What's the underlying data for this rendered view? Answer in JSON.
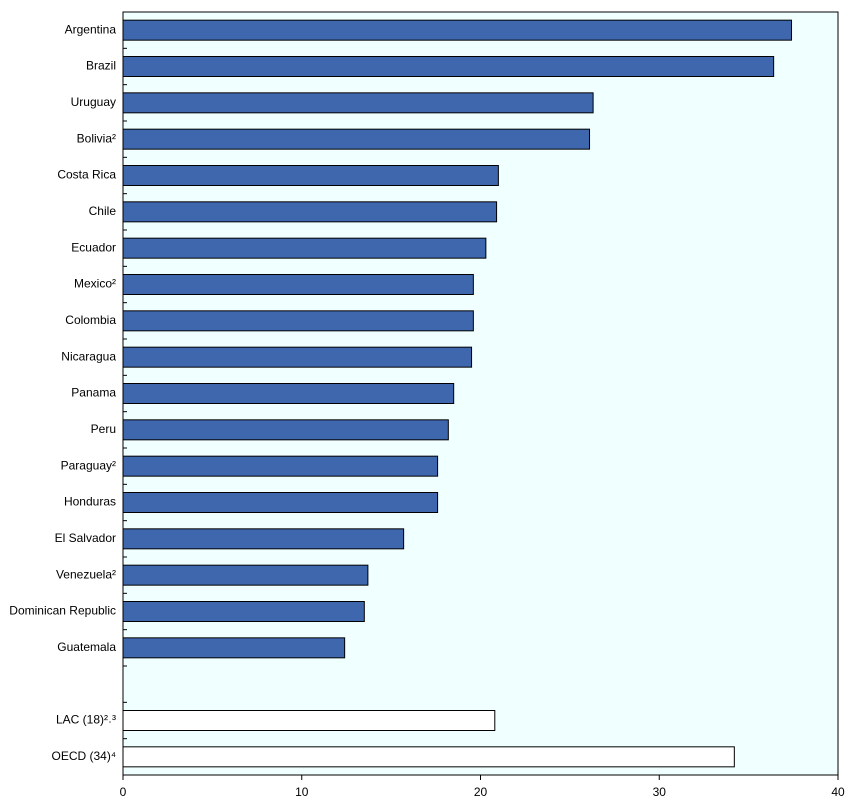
{
  "chart_data": {
    "type": "hbar",
    "categories": [
      "Argentina",
      "Brazil",
      "Uruguay",
      "Bolivia²",
      "Costa Rica",
      "Chile",
      "Ecuador",
      "Mexico²",
      "Colombia",
      "Nicaragua",
      "Panama",
      "Peru",
      "Paraguay²",
      "Honduras",
      "El Salvador",
      "Venezuela²",
      "Dominican Republic",
      "Guatemala",
      null,
      "LAC (18)²˒³",
      "OECD (34)⁴"
    ],
    "values": [
      37.4,
      36.4,
      26.3,
      26.1,
      21.0,
      20.9,
      20.3,
      19.6,
      19.6,
      19.5,
      18.5,
      18.2,
      17.6,
      17.6,
      15.7,
      13.7,
      13.5,
      12.4,
      null,
      20.8,
      34.2
    ],
    "colors": [
      "#3e67ad",
      "#3e67ad",
      "#3e67ad",
      "#3e67ad",
      "#3e67ad",
      "#3e67ad",
      "#3e67ad",
      "#3e67ad",
      "#3e67ad",
      "#3e67ad",
      "#3e67ad",
      "#3e67ad",
      "#3e67ad",
      "#3e67ad",
      "#3e67ad",
      "#3e67ad",
      "#3e67ad",
      "#3e67ad",
      null,
      "#ffffff",
      "#ffffff"
    ],
    "xlim": [
      0,
      40
    ],
    "xticks": [
      0,
      10,
      20,
      30,
      40
    ]
  }
}
